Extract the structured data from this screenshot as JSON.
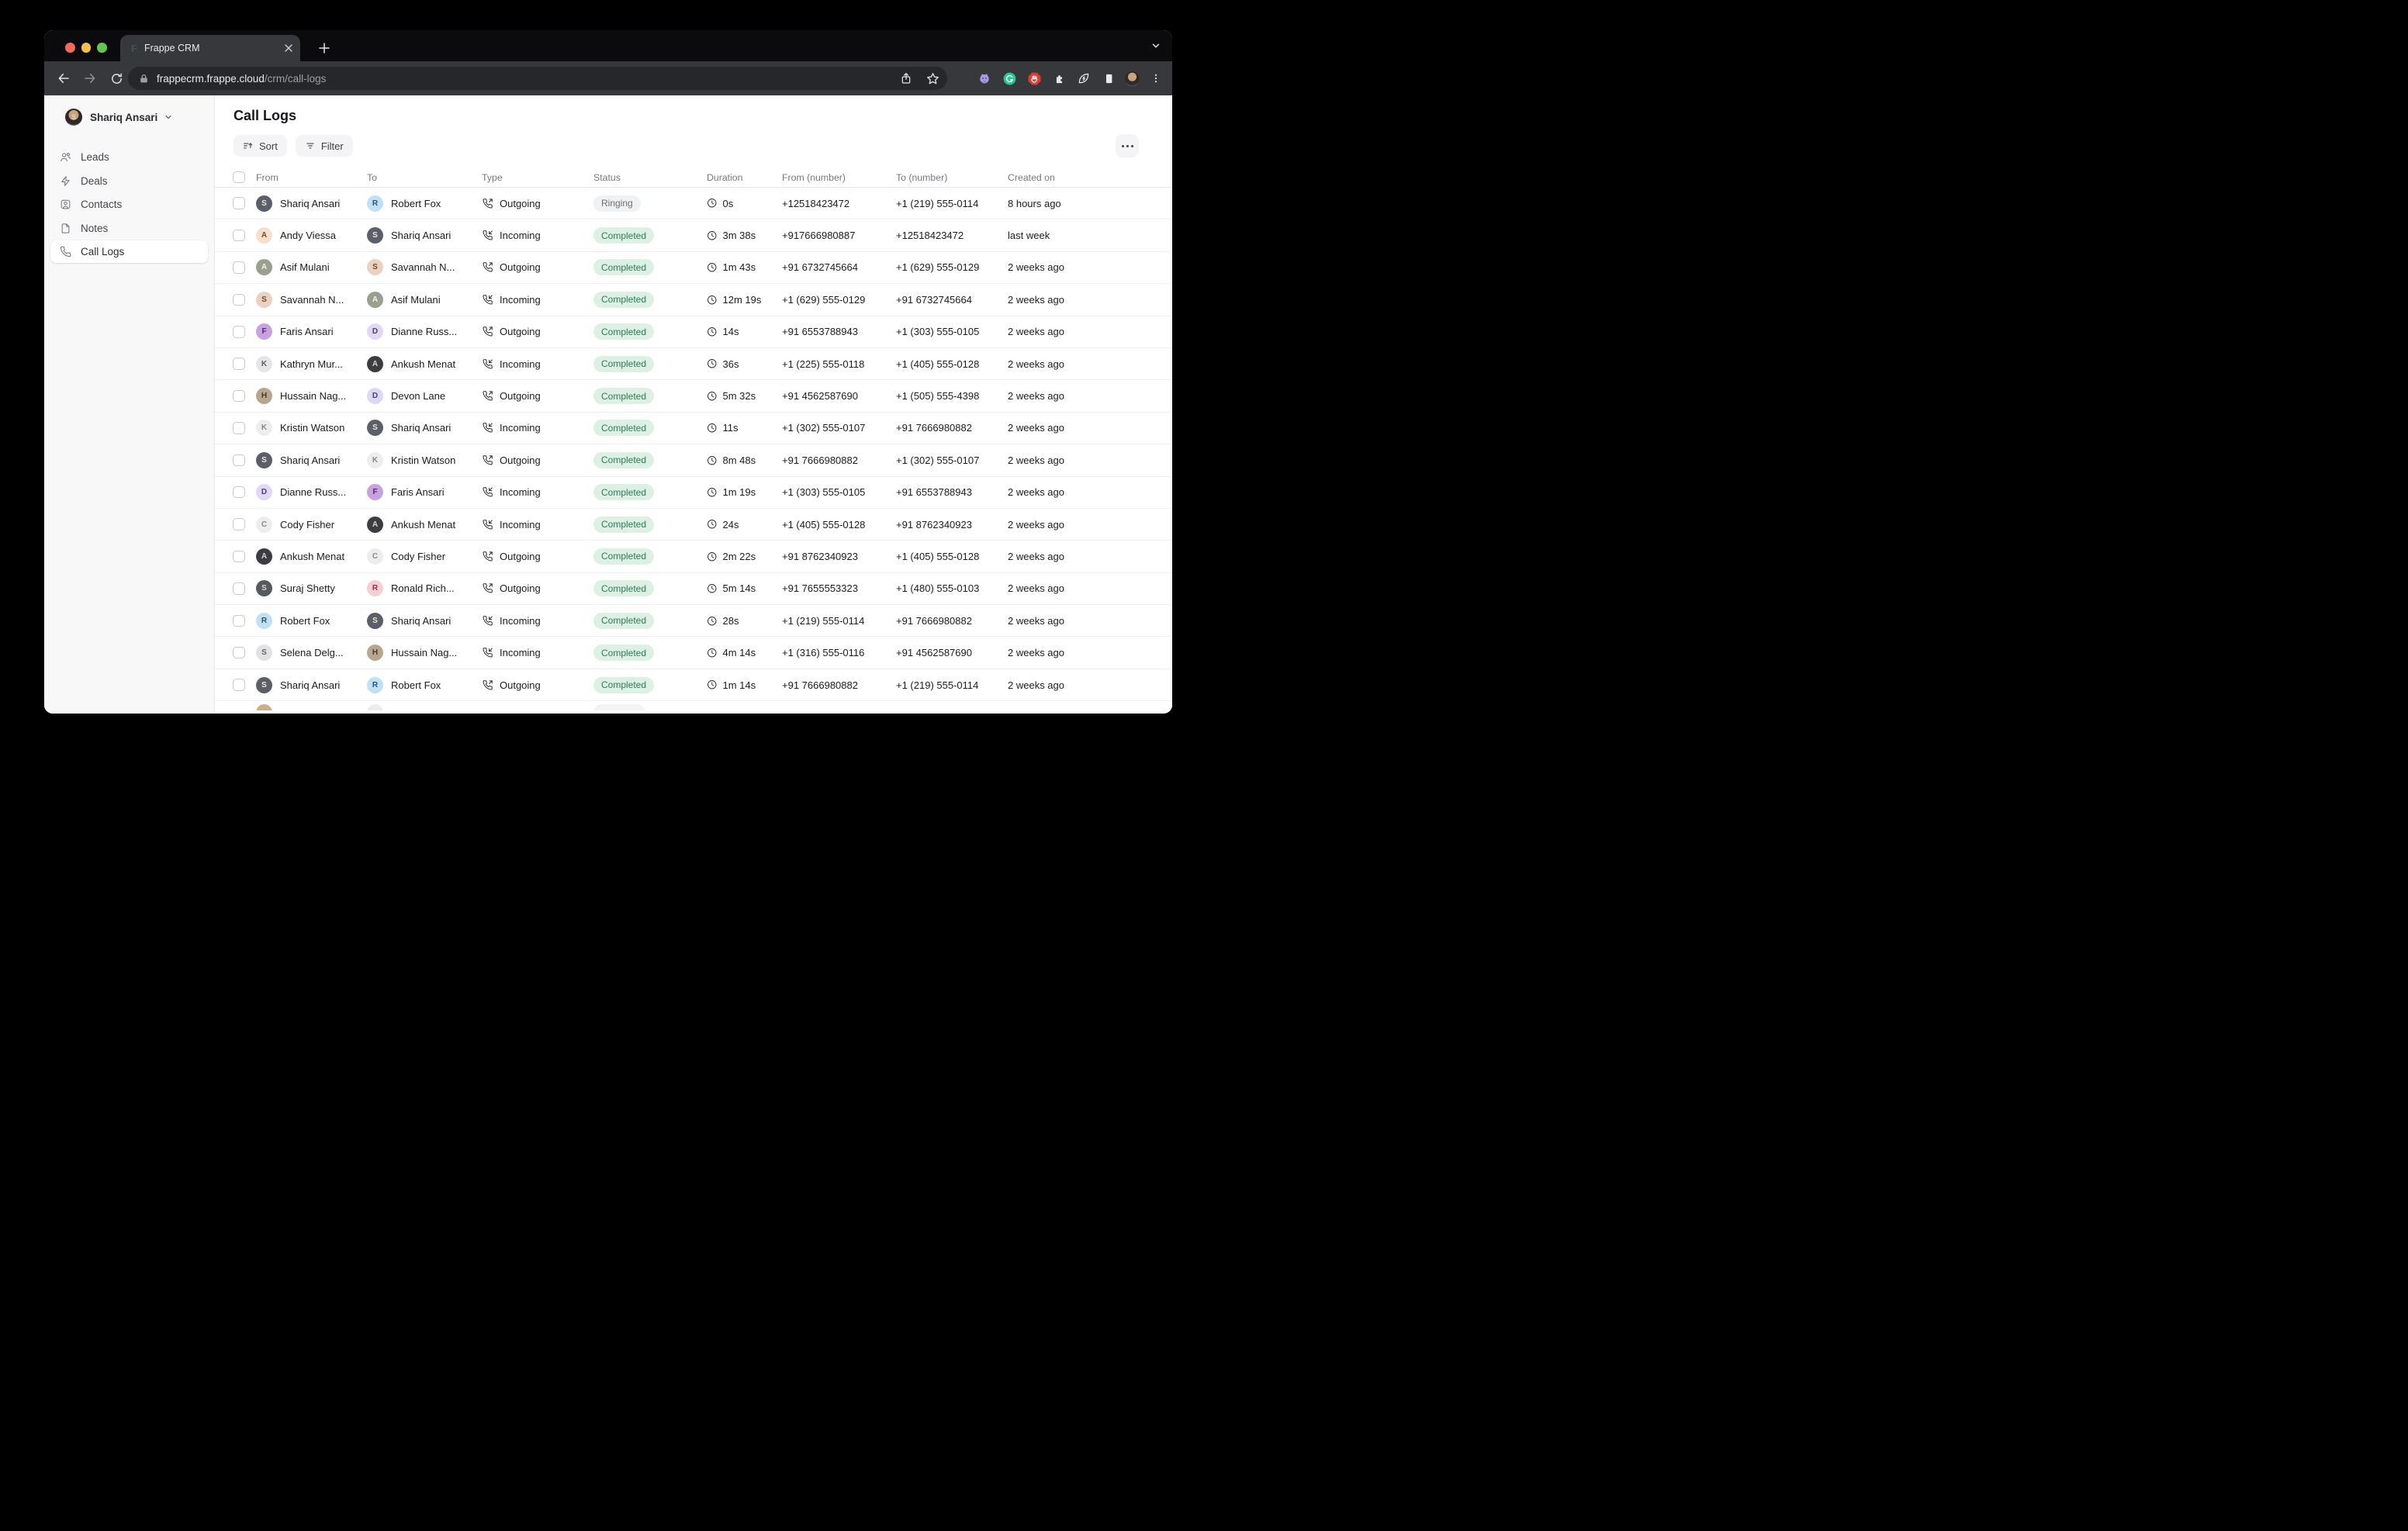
{
  "browser": {
    "tab_title": "Frappe CRM",
    "favicon_letter": "F",
    "url_host": "frappecrm.frappe.cloud",
    "url_path": "/crm/call-logs",
    "traffic_lights": [
      "#ee6a5f",
      "#f5bf4f",
      "#62c554"
    ],
    "extension_icons": [
      "github-extension-icon",
      "grammarly-extension-icon",
      "adblock-extension-icon",
      "puzzle-extension-icon",
      "energy-saver-extension-icon",
      "reading-list-icon"
    ]
  },
  "sidebar": {
    "user_name": "Shariq Ansari",
    "user_initial": "S",
    "items": [
      {
        "label": "Leads",
        "icon": "users-icon",
        "active": false
      },
      {
        "label": "Deals",
        "icon": "zap-icon",
        "active": false
      },
      {
        "label": "Contacts",
        "icon": "contact-card-icon",
        "active": false
      },
      {
        "label": "Notes",
        "icon": "note-file-icon",
        "active": false
      },
      {
        "label": "Call Logs",
        "icon": "phone-icon",
        "active": true
      }
    ]
  },
  "header": {
    "title": "Call Logs",
    "sort_label": "Sort",
    "filter_label": "Filter"
  },
  "status_styles": {
    "Completed": {
      "bg": "#ddf0e4",
      "fg": "#2e7a52"
    },
    "Ringing": {
      "bg": "#f0f1f3",
      "fg": "#696d73"
    }
  },
  "table": {
    "columns": [
      "From",
      "To",
      "Type",
      "Status",
      "Duration",
      "From (number)",
      "To (number)",
      "Created on"
    ],
    "rows": [
      {
        "from": {
          "name": "Shariq Ansari",
          "initial": "S",
          "bg": "#5b5f68",
          "fg": "#ece4d8"
        },
        "to": {
          "name": "Robert Fox",
          "initial": "R",
          "bg": "#bfe0f5",
          "fg": "#35506b"
        },
        "type": "Outgoing",
        "status": "Ringing",
        "duration": "0s",
        "from_number": "+12518423472",
        "to_number": "+1 (219) 555-0114",
        "created": "8 hours ago"
      },
      {
        "from": {
          "name": "Andy Viessa",
          "initial": "A",
          "bg": "#f6e0cd",
          "fg": "#7a4a2b"
        },
        "to": {
          "name": "Shariq Ansari",
          "initial": "S",
          "bg": "#5b5f68",
          "fg": "#ece4d8"
        },
        "type": "Incoming",
        "status": "Completed",
        "duration": "3m 38s",
        "from_number": "+917666980887",
        "to_number": "+12518423472",
        "created": "last week"
      },
      {
        "from": {
          "name": "Asif Mulani",
          "initial": "A",
          "bg": "#9aa08f",
          "fg": "#f3f3ef"
        },
        "to": {
          "name": "Savannah N...",
          "initial": "S",
          "bg": "#e9d2c0",
          "fg": "#6e4a33"
        },
        "type": "Outgoing",
        "status": "Completed",
        "duration": "1m 43s",
        "from_number": "+91 6732745664",
        "to_number": "+1 (629) 555-0129",
        "created": "2 weeks ago"
      },
      {
        "from": {
          "name": "Savannah N...",
          "initial": "S",
          "bg": "#e9d2c0",
          "fg": "#6e4a33"
        },
        "to": {
          "name": "Asif Mulani",
          "initial": "A",
          "bg": "#9aa08f",
          "fg": "#f3f3ef"
        },
        "type": "Incoming",
        "status": "Completed",
        "duration": "12m 19s",
        "from_number": "+1 (629) 555-0129",
        "to_number": "+91 6732745664",
        "created": "2 weeks ago"
      },
      {
        "from": {
          "name": "Faris Ansari",
          "initial": "F",
          "bg": "#c9a0e0",
          "fg": "#53275f"
        },
        "to": {
          "name": "Dianne Russ...",
          "initial": "D",
          "bg": "#e2d7f4",
          "fg": "#4f3b6e"
        },
        "type": "Outgoing",
        "status": "Completed",
        "duration": "14s",
        "from_number": "+91 6553788943",
        "to_number": "+1 (303) 555-0105",
        "created": "2 weeks ago"
      },
      {
        "from": {
          "name": "Kathryn Mur...",
          "initial": "K",
          "bg": "#e6e6e8",
          "fg": "#5d5f66"
        },
        "to": {
          "name": "Ankush Menat",
          "initial": "A",
          "bg": "#3c3d42",
          "fg": "#d8d3cb"
        },
        "type": "Incoming",
        "status": "Completed",
        "duration": "36s",
        "from_number": "+1 (225) 555-0118",
        "to_number": "+1 (405) 555-0128",
        "created": "2 weeks ago"
      },
      {
        "from": {
          "name": "Hussain Nag...",
          "initial": "H",
          "bg": "#b9a68e",
          "fg": "#473a28"
        },
        "to": {
          "name": "Devon Lane",
          "initial": "D",
          "bg": "#ded8f6",
          "fg": "#4a3f73"
        },
        "type": "Outgoing",
        "status": "Completed",
        "duration": "5m 32s",
        "from_number": "+91 4562587690",
        "to_number": "+1 (505) 555-4398",
        "created": "2 weeks ago"
      },
      {
        "from": {
          "name": "Kristin Watson",
          "initial": "K",
          "bg": "#ededee",
          "fg": "#85878c"
        },
        "to": {
          "name": "Shariq Ansari",
          "initial": "S",
          "bg": "#5b5f68",
          "fg": "#ece4d8"
        },
        "type": "Incoming",
        "status": "Completed",
        "duration": "11s",
        "from_number": "+1 (302) 555-0107",
        "to_number": "+91 7666980882",
        "created": "2 weeks ago"
      },
      {
        "from": {
          "name": "Shariq Ansari",
          "initial": "S",
          "bg": "#5b5f68",
          "fg": "#ece4d8"
        },
        "to": {
          "name": "Kristin Watson",
          "initial": "K",
          "bg": "#ededee",
          "fg": "#85878c"
        },
        "type": "Outgoing",
        "status": "Completed",
        "duration": "8m 48s",
        "from_number": "+91 7666980882",
        "to_number": "+1 (302) 555-0107",
        "created": "2 weeks ago"
      },
      {
        "from": {
          "name": "Dianne Russ...",
          "initial": "D",
          "bg": "#e2d7f4",
          "fg": "#4f3b6e"
        },
        "to": {
          "name": "Faris Ansari",
          "initial": "F",
          "bg": "#c9a0e0",
          "fg": "#53275f"
        },
        "type": "Incoming",
        "status": "Completed",
        "duration": "1m 19s",
        "from_number": "+1 (303) 555-0105",
        "to_number": "+91 6553788943",
        "created": "2 weeks ago"
      },
      {
        "from": {
          "name": "Cody Fisher",
          "initial": "C",
          "bg": "#ededee",
          "fg": "#85878c"
        },
        "to": {
          "name": "Ankush Menat",
          "initial": "A",
          "bg": "#3c3d42",
          "fg": "#d8d3cb"
        },
        "type": "Incoming",
        "status": "Completed",
        "duration": "24s",
        "from_number": "+1 (405) 555-0128",
        "to_number": "+91 8762340923",
        "created": "2 weeks ago"
      },
      {
        "from": {
          "name": "Ankush Menat",
          "initial": "A",
          "bg": "#3c3d42",
          "fg": "#d8d3cb"
        },
        "to": {
          "name": "Cody Fisher",
          "initial": "C",
          "bg": "#ededee",
          "fg": "#85878c"
        },
        "type": "Outgoing",
        "status": "Completed",
        "duration": "2m 22s",
        "from_number": "+91 8762340923",
        "to_number": "+1 (405) 555-0128",
        "created": "2 weeks ago"
      },
      {
        "from": {
          "name": "Suraj Shetty",
          "initial": "S",
          "bg": "#565a5e",
          "fg": "#d9d6cf"
        },
        "to": {
          "name": "Ronald Rich...",
          "initial": "R",
          "bg": "#f6cfd6",
          "fg": "#7c3a48"
        },
        "type": "Outgoing",
        "status": "Completed",
        "duration": "5m 14s",
        "from_number": "+91 7655553323",
        "to_number": "+1 (480) 555-0103",
        "created": "2 weeks ago"
      },
      {
        "from": {
          "name": "Robert Fox",
          "initial": "R",
          "bg": "#bfe0f5",
          "fg": "#35506b"
        },
        "to": {
          "name": "Shariq Ansari",
          "initial": "S",
          "bg": "#5b5f68",
          "fg": "#ece4d8"
        },
        "type": "Incoming",
        "status": "Completed",
        "duration": "28s",
        "from_number": "+1 (219) 555-0114",
        "to_number": "+91 7666980882",
        "created": "2 weeks ago"
      },
      {
        "from": {
          "name": "Selena Delg...",
          "initial": "S",
          "bg": "#e2e2e4",
          "fg": "#63656b"
        },
        "to": {
          "name": "Hussain Nag...",
          "initial": "H",
          "bg": "#b9a68e",
          "fg": "#473a28"
        },
        "type": "Incoming",
        "status": "Completed",
        "duration": "4m 14s",
        "from_number": "+1 (316) 555-0116",
        "to_number": "+91 4562587690",
        "created": "2 weeks ago"
      },
      {
        "from": {
          "name": "Shariq Ansari",
          "initial": "S",
          "bg": "#5b5f68",
          "fg": "#ece4d8"
        },
        "to": {
          "name": "Robert Fox",
          "initial": "R",
          "bg": "#bfe0f5",
          "fg": "#35506b"
        },
        "type": "Outgoing",
        "status": "Completed",
        "duration": "1m 14s",
        "from_number": "+91 7666980882",
        "to_number": "+1 (219) 555-0114",
        "created": "2 weeks ago"
      }
    ],
    "partial_row": {
      "from_bg": "#c9b08a",
      "to_bg": "#ededee",
      "badge_bg": "#f1f2f3"
    }
  }
}
